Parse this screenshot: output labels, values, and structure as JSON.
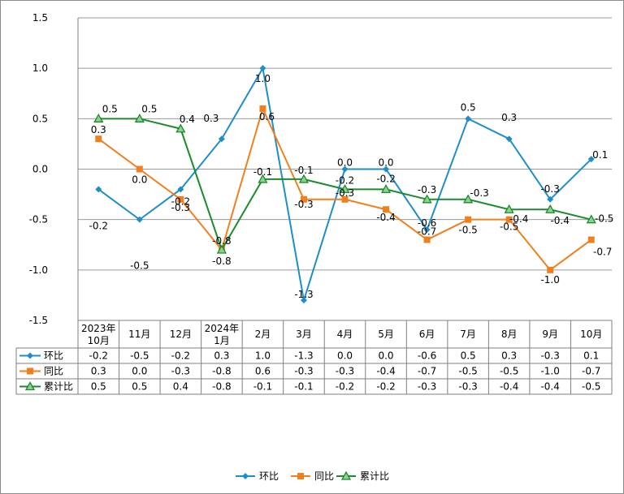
{
  "chart_data": {
    "type": "line",
    "categories": [
      "2023年10月",
      "11月",
      "12月",
      "2024年1月",
      "2月",
      "3月",
      "4月",
      "5月",
      "6月",
      "7月",
      "8月",
      "9月",
      "10月"
    ],
    "category_lines": [
      [
        "2023年",
        "10月"
      ],
      [
        "11月"
      ],
      [
        "12月"
      ],
      [
        "2024年",
        "1月"
      ],
      [
        "2月"
      ],
      [
        "3月"
      ],
      [
        "4月"
      ],
      [
        "5月"
      ],
      [
        "6月"
      ],
      [
        "7月"
      ],
      [
        "8月"
      ],
      [
        "9月"
      ],
      [
        "10月"
      ]
    ],
    "series": [
      {
        "name": "环比",
        "color": "#1f8ec6",
        "marker": "diamond",
        "values": [
          -0.2,
          -0.5,
          -0.2,
          0.3,
          1.0,
          -1.3,
          0.0,
          0.0,
          -0.6,
          0.5,
          0.3,
          -0.3,
          0.1
        ]
      },
      {
        "name": "同比",
        "color": "#f07f1e",
        "marker": "square",
        "values": [
          0.3,
          0.0,
          -0.3,
          -0.8,
          0.6,
          -0.3,
          -0.3,
          -0.4,
          -0.7,
          -0.5,
          -0.5,
          -1.0,
          -0.7
        ]
      },
      {
        "name": "累计比",
        "color": "#1c8a2e",
        "marker": "triangle",
        "values": [
          0.5,
          0.5,
          0.4,
          -0.8,
          -0.1,
          -0.1,
          -0.2,
          -0.2,
          -0.3,
          -0.3,
          -0.4,
          -0.4,
          -0.5
        ]
      }
    ],
    "ylim": [
      -1.5,
      1.5
    ],
    "yticks": [
      -1.5,
      -1.0,
      -0.5,
      0.0,
      0.5,
      1.0,
      1.5
    ],
    "ytick_labels": [
      "-1.5",
      "-1.0",
      "-0.5",
      "0.0",
      "0.5",
      "1.0",
      "1.5"
    ],
    "grid": true,
    "data_table": true,
    "legend_position": "bottom"
  }
}
